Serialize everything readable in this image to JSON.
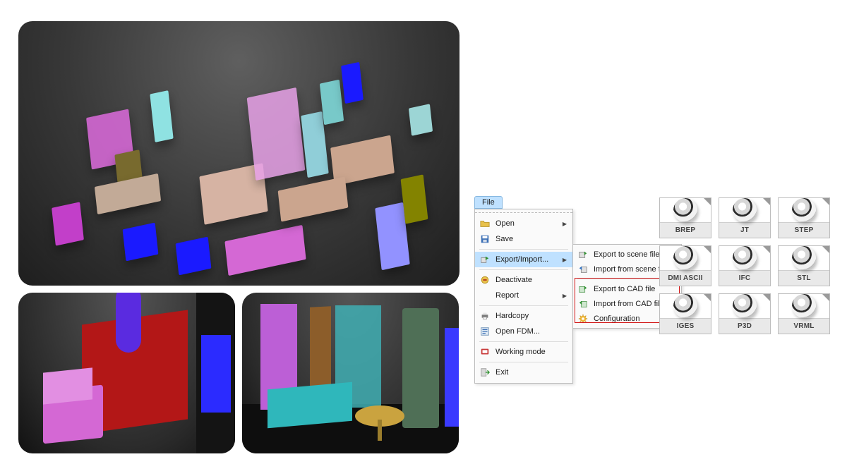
{
  "colors": {
    "menu_highlight": "#bfe1ff",
    "menu_border": "#bcbcbc",
    "submenu_highlight_border": "#d11313",
    "tile_caption_bg": "#e9e9e9",
    "cad_bg_inner": "#5f5f5f",
    "cad_bg_outer": "#1e1e1e"
  },
  "menu": {
    "title": "File",
    "items": [
      {
        "label": "Open",
        "icon": "folder-open-icon",
        "has_submenu": true
      },
      {
        "label": "Save",
        "icon": "save-icon",
        "has_submenu": false
      },
      {
        "label": "Export/Import...",
        "icon": "export-icon",
        "has_submenu": true,
        "highlighted": true
      },
      {
        "label": "Deactivate",
        "icon": "deactivate-icon",
        "has_submenu": false
      },
      {
        "label": "Report",
        "icon": "blank-icon",
        "has_submenu": true
      },
      {
        "label": "Hardcopy",
        "icon": "printer-icon",
        "has_submenu": false
      },
      {
        "label": "Open FDM...",
        "icon": "fdm-icon",
        "has_submenu": false
      },
      {
        "label": "Working mode",
        "icon": "mode-icon",
        "has_submenu": false
      },
      {
        "label": "Exit",
        "icon": "exit-icon",
        "has_submenu": false
      }
    ],
    "separators_after": [
      1,
      2,
      4,
      6,
      7
    ]
  },
  "submenu": {
    "items": [
      {
        "label": "Export to scene file",
        "icon": "scene-export-icon"
      },
      {
        "label": "Import from scene file",
        "icon": "scene-import-icon"
      },
      {
        "label": "Export to CAD file",
        "icon": "cad-export-icon"
      },
      {
        "label": "Import from CAD file",
        "icon": "cad-import-icon"
      },
      {
        "label": "Configuration",
        "icon": "config-icon"
      }
    ],
    "separator_after": 1,
    "highlight_box_covers": [
      2,
      3,
      4
    ]
  },
  "formats": {
    "tiles": [
      "BREP",
      "JT",
      "STEP",
      "DMI ASCII",
      "IFC",
      "STL",
      "IGES",
      "P3D",
      "VRML"
    ]
  },
  "cad_previews": {
    "layout": "one large isometric view over two small detail views",
    "big_objects_palette": [
      "#c23fc9",
      "#1a1aff",
      "#d468d4",
      "#d6b3a3",
      "#e7a1e7",
      "#90ced8",
      "#cba58e",
      "#9292ff",
      "#838300",
      "#8fe2e2",
      "#78c9c9",
      "#786a2e",
      "#c2aa97",
      "#9cd5d5"
    ],
    "small_left": {
      "cabinet": "#b31717",
      "cylinder": "#5a2be0",
      "chair": "#d468d4"
    },
    "small_right": {
      "locker": "#4f6f56",
      "door": "#8c5d2a",
      "curtain": "#3faeb3",
      "bed": "#2fb7bb",
      "purple_panel": "#bc5fd6",
      "table": "#caa33f",
      "blue_panel": "#3a3aff"
    }
  }
}
